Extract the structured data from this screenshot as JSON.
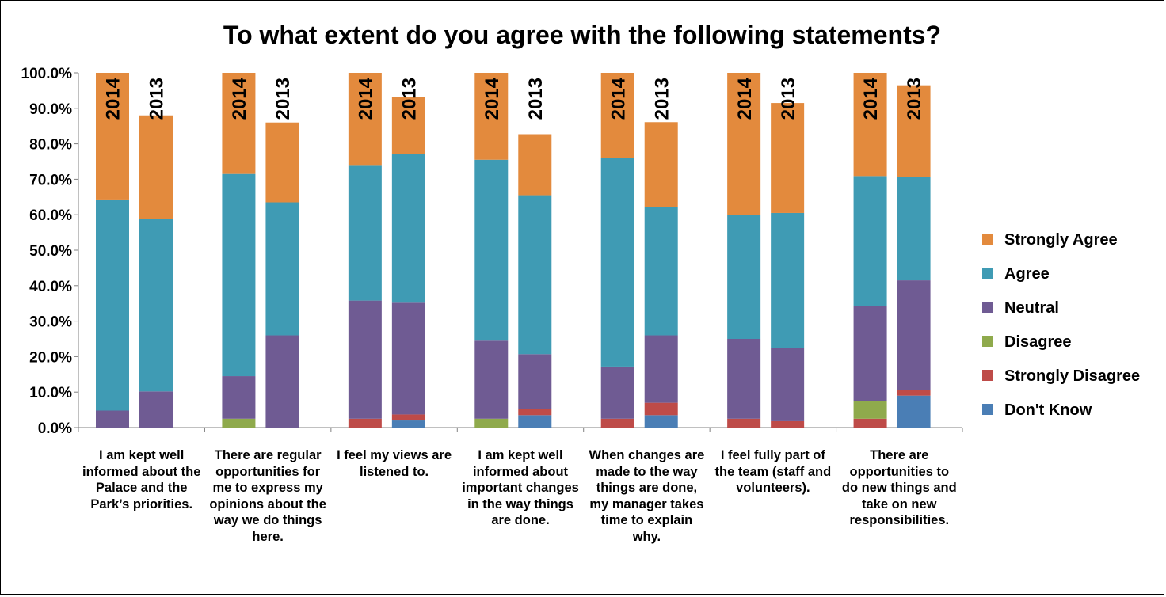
{
  "chart_data": {
    "type": "bar",
    "stacked": true,
    "title": "To what extent do you agree with the following statements?",
    "y_tick_labels": [
      "0.0%",
      "10.0%",
      "20.0%",
      "30.0%",
      "40.0%",
      "50.0%",
      "60.0%",
      "70.0%",
      "80.0%",
      "90.0%",
      "100.0%"
    ],
    "ylim": [
      0,
      100
    ],
    "grid": false,
    "legend_position": "right",
    "bar_labels": [
      "2014",
      "2013"
    ],
    "categories": [
      "I am kept well informed about the Palace and the Park’s priorities.",
      "There are regular opportunities for me to express my opinions about the way we do things here.",
      "I feel my views are listened to.",
      "I am kept well informed about important changes in the way things are done.",
      "When changes are made to the way things are done, my manager takes time to explain why.",
      "I feel fully part of the team (staff and volunteers).",
      "There are opportunities to do new things and take on new responsibilities."
    ],
    "series": [
      {
        "name": "Don't Know",
        "color": "#4a7eb5",
        "values_2014": [
          0,
          0,
          0,
          0,
          0,
          0,
          0
        ],
        "values_2013": [
          0,
          0,
          2,
          3.5,
          3.5,
          0,
          9
        ]
      },
      {
        "name": "Strongly Disagree",
        "color": "#be4b48",
        "values_2014": [
          0,
          0,
          2.5,
          0,
          2.5,
          2.5,
          2.5
        ],
        "values_2013": [
          0,
          0,
          1.7,
          1.7,
          3.5,
          1.8,
          1.5
        ]
      },
      {
        "name": "Disagree",
        "color": "#8faa4c",
        "values_2014": [
          0,
          2.5,
          0,
          2.5,
          0,
          0,
          5
        ]
      },
      {
        "name": "Neutral",
        "color": "#6f5b93",
        "values_2014": [
          4.8,
          12,
          33.3,
          22,
          14.7,
          22.5,
          26.7
        ],
        "values_2013": [
          10.2,
          26,
          31.5,
          15.5,
          19,
          20.7,
          31
        ]
      },
      {
        "name": "Agree",
        "color": "#3f9bb4",
        "values_2014": [
          59.5,
          57,
          38,
          51,
          58.8,
          35,
          36.7
        ],
        "values_2013": [
          48.6,
          37.5,
          42,
          44.8,
          36.1,
          38,
          29.2
        ]
      },
      {
        "name": "Strongly Agree",
        "color": "#e38a3d",
        "values_2014": [
          35.7,
          28.5,
          26.2,
          24.5,
          24,
          40,
          29.1
        ],
        "values_2013": [
          29.2,
          22.5,
          16,
          17.2,
          24,
          31,
          25.8
        ]
      }
    ]
  }
}
